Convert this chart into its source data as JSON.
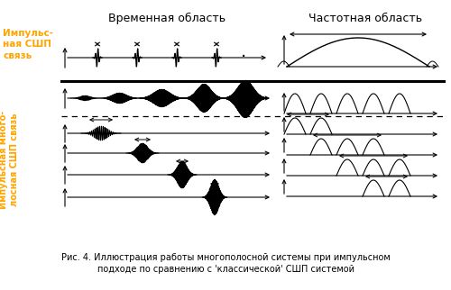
{
  "title_top_left": "Импульс-\nная СШП\nсвязь",
  "title_left_bottom": "Импульсная много-\nлосная СШП связь",
  "header_time": "Временная область",
  "header_freq": "Частотная область",
  "caption": "Рис. 4. Иллюстрация работы многополосной системы при импульсном\nподходе по сравнению с 'классической' СШП системой",
  "bg_color": "#ffffff",
  "text_color": "#000000",
  "orange_color": "#FFA500",
  "signal_color": "#000000",
  "gray_color": "#888888"
}
